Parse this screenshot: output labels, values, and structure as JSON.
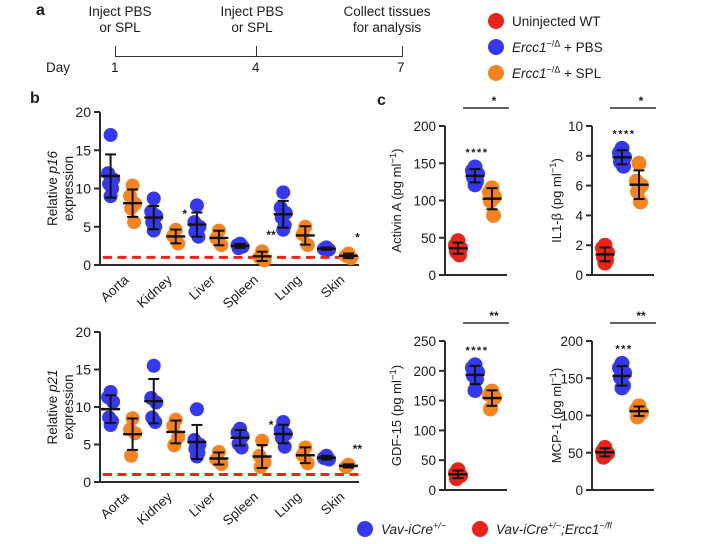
{
  "panels": {
    "a": "a",
    "b": "b",
    "c": "c"
  },
  "colors": {
    "red": "#ea2318",
    "blue": "#3538ee",
    "orange": "#f6831f",
    "ref": "#ff2014",
    "axis": "#2b2b2b",
    "bracket": "#4d4d4d"
  },
  "panel_a": {
    "day_label": "Day",
    "events": [
      {
        "line1": "Inject PBS",
        "line2": "or SPL",
        "day": "1"
      },
      {
        "line1": "Inject PBS",
        "line2": "or SPL",
        "day": "4"
      },
      {
        "line1": "Collect tissues",
        "line2": "for analysis",
        "day": "7"
      }
    ]
  },
  "legend_top": {
    "items": [
      {
        "color_key": "red",
        "italic": "",
        "sup": "",
        "rest": "Uninjected WT"
      },
      {
        "color_key": "blue",
        "italic": "Ercc1",
        "sup": "−/Δ",
        "rest": " + PBS"
      },
      {
        "color_key": "orange",
        "italic": "Ercc1",
        "sup": "−/Δ",
        "rest": " + SPL"
      }
    ]
  },
  "legend_bottom": {
    "items": [
      {
        "color_key": "blue",
        "it1": "Vav-iCre",
        "sup1": "+/−",
        "mid": "",
        "it2": "",
        "sup2": ""
      },
      {
        "color_key": "red",
        "it1": "Vav-iCre",
        "sup1": "+/−",
        "mid": ";",
        "it2": "Ercc1",
        "sup2": "−/fl"
      }
    ]
  },
  "chart_data": [
    {
      "id": "p16",
      "type": "scatter",
      "layout": "tissues",
      "ylabel": "Relative p16 expression",
      "ylabel_normal": "Relative ",
      "ylabel_italic": "p16",
      "ylabel_line2": "expression",
      "ylim": [
        0,
        20
      ],
      "yticks": [
        0,
        5,
        10,
        15,
        20
      ],
      "reference_line": 1,
      "categories": [
        "Aorta",
        "Kidney",
        "Liver",
        "Spleen",
        "Lung",
        "Skin"
      ],
      "series": [
        {
          "name": "Ercc1−/Δ + PBS",
          "color_key": "blue",
          "points": [
            [
              17.0,
              12.0,
              11.2,
              10.6,
              10.0,
              9.0
            ],
            [
              8.7,
              7.0,
              6.4,
              5.6,
              5.0,
              4.5
            ],
            [
              7.8,
              5.6,
              5.0,
              4.3,
              3.7
            ],
            [
              2.8,
              2.6,
              2.4,
              2.2
            ],
            [
              9.5,
              7.5,
              6.8,
              6.2,
              5.2,
              4.6
            ],
            [
              2.3,
              2.1,
              2.0
            ]
          ]
        },
        {
          "name": "Ercc1−/Δ + SPL",
          "color_key": "orange",
          "points": [
            [
              10.4,
              9.0,
              8.0,
              7.4,
              5.6
            ],
            [
              4.6,
              3.8,
              2.8
            ],
            [
              4.5,
              3.5,
              2.6
            ],
            [
              1.8,
              1.0,
              0.6
            ],
            [
              5.0,
              4.0,
              2.6
            ],
            [
              1.5,
              1.2,
              0.9
            ]
          ],
          "significance": [
            "",
            "*",
            "",
            "**",
            "",
            "*"
          ]
        }
      ]
    },
    {
      "id": "p21",
      "type": "scatter",
      "layout": "tissues",
      "ylabel": "Relative p21 expression",
      "ylabel_normal": "Relative ",
      "ylabel_italic": "p21",
      "ylabel_line2": "expression",
      "ylim": [
        0,
        20
      ],
      "yticks": [
        0,
        5,
        10,
        15,
        20
      ],
      "reference_line": 1,
      "categories": [
        "Aorta",
        "Kidney",
        "Liver",
        "Spleen",
        "Lung",
        "Skin"
      ],
      "series": [
        {
          "name": "Ercc1−/Δ + PBS",
          "color_key": "blue",
          "points": [
            [
              12.0,
              11.3,
              10.7,
              8.6,
              8.1,
              7.6
            ],
            [
              15.5,
              11.2,
              10.6,
              8.6,
              8.0
            ],
            [
              9.7,
              5.6,
              5.0,
              4.4,
              3.9,
              3.4
            ],
            [
              7.1,
              6.6,
              6.1,
              5.1,
              4.6
            ],
            [
              8.0,
              7.0,
              6.4,
              5.9,
              4.7
            ],
            [
              3.5,
              3.2,
              3.0
            ]
          ]
        },
        {
          "name": "Ercc1−/Δ + SPL",
          "color_key": "orange",
          "points": [
            [
              8.5,
              7.0,
              6.5,
              3.5
            ],
            [
              8.3,
              7.5,
              6.0,
              4.9
            ],
            [
              4.0,
              3.0,
              2.4
            ],
            [
              5.5,
              3.5,
              2.6,
              2.0
            ],
            [
              4.6,
              3.6,
              2.5
            ],
            [
              2.3,
              2.0
            ]
          ],
          "significance": [
            "",
            "",
            "",
            "*",
            "",
            "**"
          ]
        }
      ]
    },
    {
      "id": "activin",
      "type": "scatter",
      "layout": "groups",
      "ylabel": "Activin A (pg ml−1)",
      "ylabel_main": "Activin A (pg ml",
      "ylabel_sup": "−1",
      "ylabel_close": ")",
      "ylim": [
        0,
        200
      ],
      "yticks": [
        0,
        50,
        100,
        150,
        200
      ],
      "bracket_stars": "*",
      "groups": [
        {
          "name": "Uninjected WT",
          "color_key": "red",
          "values": [
            46,
            40,
            36,
            31,
            27
          ]
        },
        {
          "name": "Ercc1−/Δ + PBS",
          "color_key": "blue",
          "values": [
            145,
            140,
            136,
            131,
            126,
            121
          ],
          "stars": "****"
        },
        {
          "name": "Ercc1−/Δ + SPL",
          "color_key": "orange",
          "values": [
            117,
            111,
            105,
            99,
            80
          ]
        }
      ]
    },
    {
      "id": "il1b",
      "type": "scatter",
      "layout": "groups",
      "ylabel": "IL1-β (pg ml−1)",
      "ylabel_main": "IL1-β (pg ml",
      "ylabel_sup": "−1",
      "ylabel_close": ")",
      "ylim": [
        0,
        10
      ],
      "yticks": [
        0,
        2,
        4,
        6,
        8,
        10
      ],
      "bracket_stars": "*",
      "groups": [
        {
          "name": "Uninjected WT",
          "color_key": "red",
          "values": [
            2.0,
            1.8,
            1.5,
            1.2,
            1.0,
            0.8
          ]
        },
        {
          "name": "Ercc1−/Δ + PBS",
          "color_key": "blue",
          "values": [
            8.5,
            8.2,
            7.9,
            7.6,
            7.3
          ],
          "stars": "****"
        },
        {
          "name": "Ercc1−/Δ + SPL",
          "color_key": "orange",
          "values": [
            7.5,
            6.3,
            6.0,
            5.6,
            4.9
          ]
        }
      ]
    },
    {
      "id": "gdf15",
      "type": "scatter",
      "layout": "groups",
      "ylabel": "GDF-15 (pg ml−1)",
      "ylabel_main": "GDF-15 (pg ml",
      "ylabel_sup": "−1",
      "ylabel_close": ")",
      "ylim": [
        0,
        250
      ],
      "yticks": [
        0,
        50,
        100,
        150,
        200,
        250
      ],
      "bracket_stars": "**",
      "groups": [
        {
          "name": "Uninjected WT",
          "color_key": "red",
          "values": [
            34,
            28,
            24,
            19
          ]
        },
        {
          "name": "Ercc1−/Δ + PBS",
          "color_key": "blue",
          "values": [
            210,
            205,
            198,
            192,
            186,
            167
          ],
          "stars": "****"
        },
        {
          "name": "Ercc1−/Δ + SPL",
          "color_key": "orange",
          "values": [
            166,
            160,
            155,
            136
          ]
        }
      ]
    },
    {
      "id": "mcp1",
      "type": "scatter",
      "layout": "groups",
      "ylabel": "MCP-1 (pg ml−1)",
      "ylabel_main": "MCP-1 (pg ml",
      "ylabel_sup": "−1",
      "ylabel_close": ")",
      "ylim": [
        0,
        200
      ],
      "yticks": [
        0,
        50,
        100,
        150,
        200
      ],
      "bracket_stars": "**",
      "groups": [
        {
          "name": "Uninjected WT",
          "color_key": "red",
          "values": [
            57,
            52,
            49,
            44
          ]
        },
        {
          "name": "Ercc1−/Δ + PBS",
          "color_key": "blue",
          "values": [
            170,
            164,
            157,
            151,
            140,
            137
          ],
          "stars": "***"
        },
        {
          "name": "Ercc1−/Δ + SPL",
          "color_key": "orange",
          "values": [
            113,
            108,
            104,
            98
          ]
        }
      ]
    }
  ]
}
